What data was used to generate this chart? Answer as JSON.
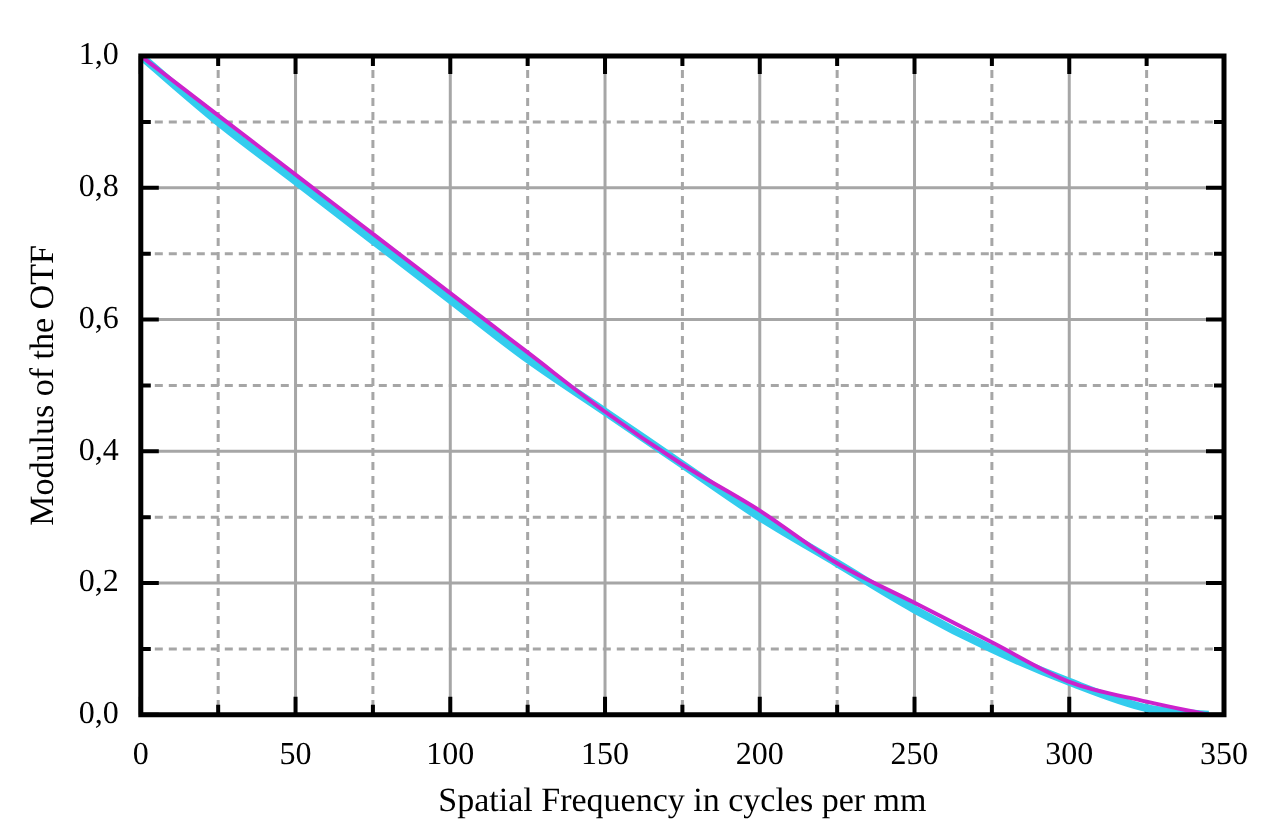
{
  "chart_data": {
    "type": "line",
    "xlabel": "Spatial Frequency in cycles per mm",
    "ylabel": "Modulus of the OTF",
    "x": [
      0,
      25,
      50,
      75,
      100,
      125,
      150,
      175,
      200,
      225,
      250,
      275,
      300,
      325,
      345
    ],
    "series": [
      {
        "color": "#33ccee",
        "values": [
          1.0,
          0.9,
          0.81,
          0.72,
          0.63,
          0.54,
          0.46,
          0.38,
          0.3,
          0.23,
          0.16,
          0.1,
          0.05,
          0.01,
          0.0
        ]
      },
      {
        "color": "#cc22cc",
        "values": [
          1.0,
          0.91,
          0.82,
          0.73,
          0.64,
          0.55,
          0.46,
          0.38,
          0.31,
          0.23,
          0.17,
          0.11,
          0.05,
          0.02,
          0.0
        ]
      }
    ],
    "xlim": [
      0,
      350
    ],
    "ylim": [
      0,
      1
    ],
    "xticks": [
      0,
      {
        "value": 25,
        "label": null
      },
      50,
      {
        "value": 75,
        "label": null
      },
      100,
      {
        "value": 125,
        "label": null
      },
      150,
      {
        "value": 175,
        "label": null
      },
      200,
      {
        "value": 225,
        "label": null
      },
      250,
      {
        "value": 275,
        "label": null
      },
      300,
      {
        "value": 325,
        "label": null
      },
      350
    ],
    "yticks": [
      {
        "value": 0,
        "label": "0,0"
      },
      {
        "value": 0.1,
        "label": null
      },
      {
        "value": 0.2,
        "label": "0,2"
      },
      {
        "value": 0.3,
        "label": null
      },
      {
        "value": 0.4,
        "label": "0,4"
      },
      {
        "value": 0.5,
        "label": null
      },
      {
        "value": 0.6,
        "label": "0,6"
      },
      {
        "value": 0.7,
        "label": null
      },
      {
        "value": 0.8,
        "label": "0,8"
      },
      {
        "value": 0.9,
        "label": null
      },
      {
        "value": 1.0,
        "label": "1,0"
      }
    ],
    "grid": true,
    "marker": "none",
    "line_style": "solid",
    "legend": false
  }
}
